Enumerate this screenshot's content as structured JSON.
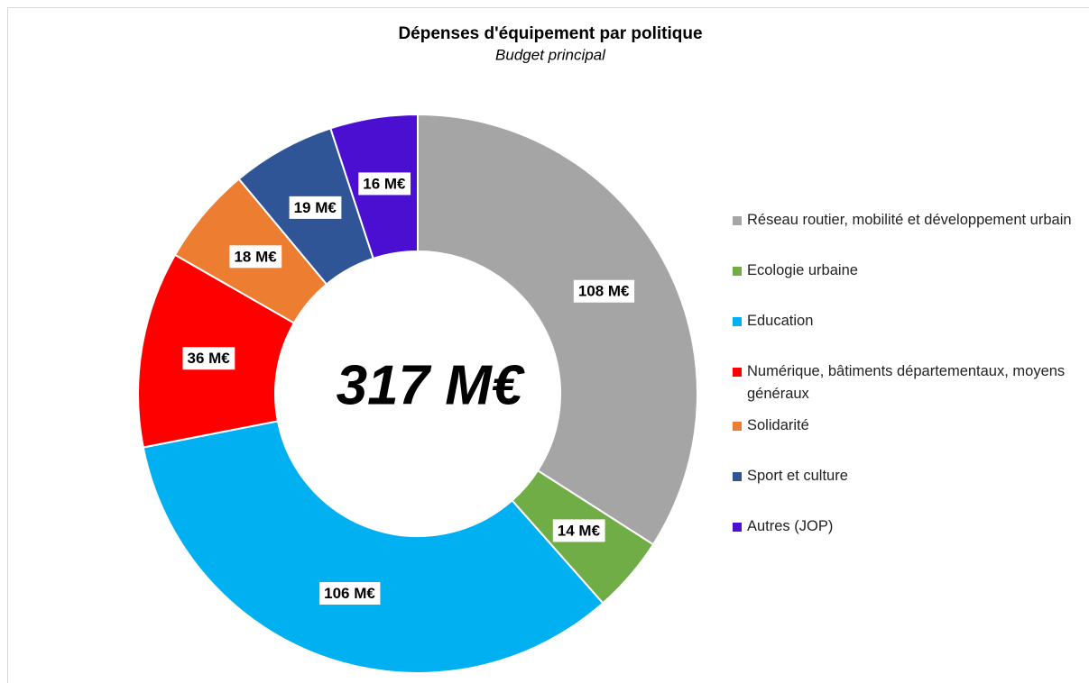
{
  "chart_data": {
    "type": "donut",
    "title": "Dépenses d'équipement par politique",
    "subtitle": "Budget principal",
    "annotation": "317 M€",
    "categories": [
      "Réseau routier, mobilité et développement urbain",
      "Ecologie urbaine",
      "Education",
      "Numérique, bâtiments départementaux, moyens généraux",
      "Solidarité",
      "Sport et culture",
      "Autres (JOP)"
    ],
    "values": [
      108,
      14,
      106,
      36,
      18,
      19,
      16
    ],
    "value_labels": [
      "108 M€",
      "14 M€",
      "106 M€",
      "36 M€",
      "18 M€",
      "19 M€",
      "16 M€"
    ],
    "colors": [
      "#a5a5a5",
      "#70ad47",
      "#00b0f0",
      "#ff0000",
      "#ed7d31",
      "#2f5597",
      "#4a0fd0"
    ],
    "legend": "right"
  }
}
